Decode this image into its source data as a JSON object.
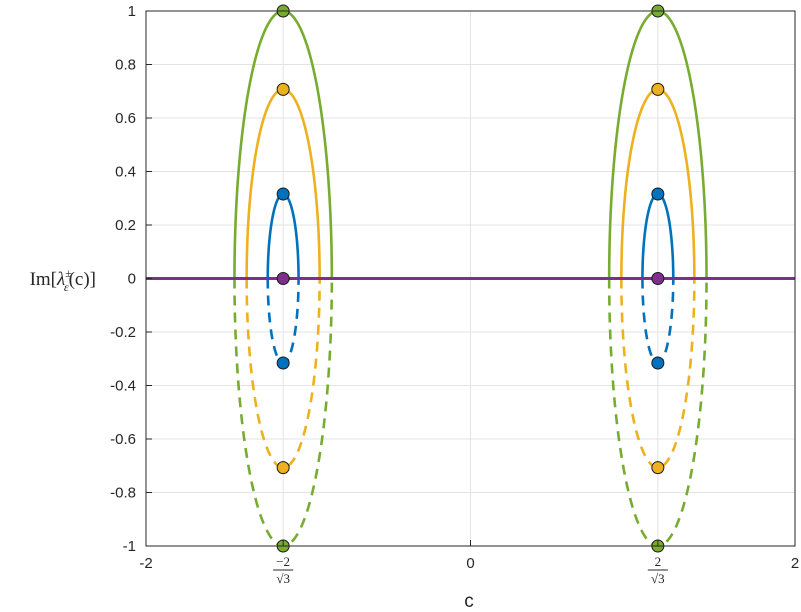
{
  "chart_data": {
    "type": "line",
    "xlabel": "c",
    "ylabel": "Im[λ±ε(c)]",
    "xlim": [
      -2,
      2
    ],
    "ylim": [
      -1,
      1
    ],
    "grid": true,
    "xticks": [
      {
        "value": -2,
        "label": "-2"
      },
      {
        "value": -1.1547,
        "label": "",
        "frac_num": "−2",
        "frac_den": "√3"
      },
      {
        "value": 0,
        "label": "0"
      },
      {
        "value": 1.1547,
        "label": "",
        "frac_num": "2",
        "frac_den": "√3"
      },
      {
        "value": 2,
        "label": "2"
      }
    ],
    "yticks": [
      "1",
      "0.8",
      "0.6",
      "0.4",
      "0.2",
      "0",
      "-0.2",
      "-0.4",
      "-0.6",
      "-0.8",
      "-1"
    ],
    "centers": [
      -1.1547,
      1.1547
    ],
    "series": [
      {
        "color": "#0072BD",
        "peak": 0.316,
        "half_width": 0.095
      },
      {
        "color": "#EDB120",
        "peak": 0.707,
        "half_width": 0.225
      },
      {
        "color": "#77AC30",
        "peak": 1.0,
        "half_width": 0.3
      },
      {
        "color": "#7E2F8E",
        "peak": 0,
        "half_width": 0
      }
    ],
    "styles": {
      "upper": "solid",
      "lower": "dashed"
    },
    "markers": [
      {
        "x": -1.1547,
        "y": 1.0,
        "color": "#77AC30"
      },
      {
        "x": -1.1547,
        "y": 0.707,
        "color": "#EDB120"
      },
      {
        "x": -1.1547,
        "y": 0.316,
        "color": "#0072BD"
      },
      {
        "x": -1.1547,
        "y": 0,
        "color": "#7E2F8E"
      },
      {
        "x": -1.1547,
        "y": -0.316,
        "color": "#0072BD"
      },
      {
        "x": -1.1547,
        "y": -0.707,
        "color": "#EDB120"
      },
      {
        "x": -1.1547,
        "y": -1.0,
        "color": "#77AC30"
      },
      {
        "x": 1.1547,
        "y": 1.0,
        "color": "#77AC30"
      },
      {
        "x": 1.1547,
        "y": 0.707,
        "color": "#EDB120"
      },
      {
        "x": 1.1547,
        "y": 0.316,
        "color": "#0072BD"
      },
      {
        "x": 1.1547,
        "y": 0,
        "color": "#7E2F8E"
      },
      {
        "x": 1.1547,
        "y": -0.316,
        "color": "#0072BD"
      },
      {
        "x": 1.1547,
        "y": -0.707,
        "color": "#EDB120"
      },
      {
        "x": 1.1547,
        "y": -1.0,
        "color": "#77AC30"
      }
    ],
    "horizontal_line": {
      "y": 0,
      "color": "#7E2F8E"
    }
  }
}
